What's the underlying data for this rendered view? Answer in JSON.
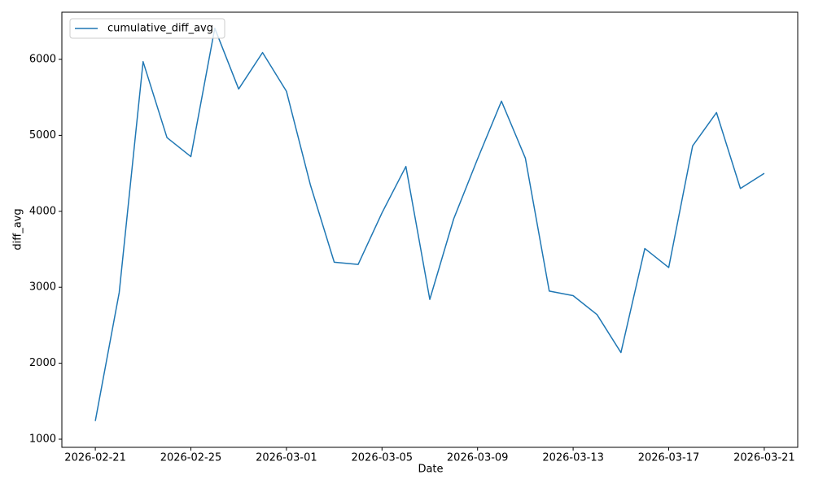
{
  "chart_data": {
    "type": "line",
    "x_label": "Date",
    "y_label": "diff_avg",
    "x": [
      "2026-02-21",
      "2026-02-22",
      "2026-02-23",
      "2026-02-24",
      "2026-02-25",
      "2026-02-26",
      "2026-02-27",
      "2026-02-28",
      "2026-03-01",
      "2026-03-02",
      "2026-03-03",
      "2026-03-04",
      "2026-03-05",
      "2026-03-06",
      "2026-03-07",
      "2026-03-08",
      "2026-03-09",
      "2026-03-10",
      "2026-03-11",
      "2026-03-12",
      "2026-03-13",
      "2026-03-14",
      "2026-03-15",
      "2026-03-16",
      "2026-03-17",
      "2026-03-18",
      "2026-03-19",
      "2026-03-20",
      "2026-03-21"
    ],
    "series": [
      {
        "name": "cumulative_diff_avg",
        "color": "#1f77b4",
        "values": [
          1240,
          2930,
          5970,
          4970,
          4720,
          6410,
          5610,
          6090,
          5580,
          4350,
          3330,
          3300,
          3980,
          4590,
          2840,
          3900,
          4690,
          5450,
          4700,
          2950,
          2890,
          2640,
          2140,
          3510,
          3260,
          4860,
          5300,
          4300,
          4500
        ]
      }
    ],
    "xticks": [
      "2026-02-21",
      "2026-02-25",
      "2026-03-01",
      "2026-03-05",
      "2026-03-09",
      "2026-03-13",
      "2026-03-17",
      "2026-03-21"
    ],
    "ylim": [
      893,
      6621
    ],
    "yticks": [
      1000,
      2000,
      3000,
      4000,
      5000,
      6000
    ],
    "legend": "upper left",
    "grid": false
  }
}
